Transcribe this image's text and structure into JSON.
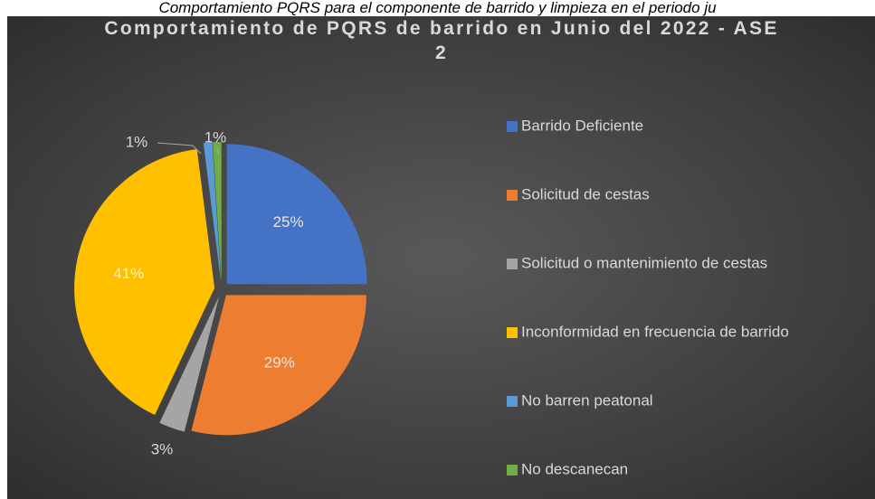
{
  "caption": "Comportamiento PQRS para el componente de barrido y limpieza en el periodo ju",
  "chart_data": {
    "type": "pie",
    "title": "Comportamiento de PQRS de barrido en Junio del 2022 - ASE 2",
    "categories": [
      "Barrido Deficiente",
      "Solicitud de cestas",
      "Solicitud o mantenimiento de cestas",
      "Inconformidad en frecuencia de barrido",
      "No barren peatonal",
      "No descanecan"
    ],
    "values": [
      25,
      29,
      3,
      41,
      1,
      1
    ],
    "value_labels": [
      "25%",
      "29%",
      "3%",
      "41%",
      "1%",
      "1%"
    ],
    "colors": [
      "#4472c4",
      "#ed7d31",
      "#a5a5a5",
      "#ffc000",
      "#5b9bd5",
      "#70ad47"
    ],
    "legend": "right"
  }
}
